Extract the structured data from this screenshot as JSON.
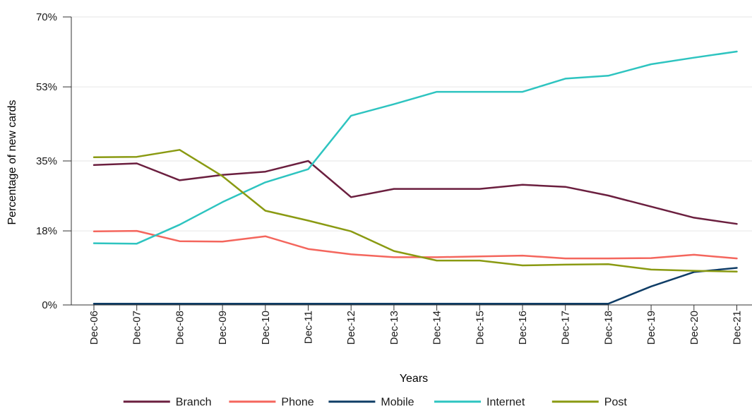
{
  "chart_data": {
    "type": "line",
    "title": "",
    "xlabel": "Years",
    "ylabel": "Percentage of new cards",
    "ylim": [
      0,
      70
    ],
    "yticks": [
      0,
      18,
      35,
      53,
      70
    ],
    "ytick_labels": [
      "0%",
      "18%",
      "35%",
      "53%",
      "70%"
    ],
    "grid": "horizontal",
    "legend_position": "bottom",
    "categories": [
      "Dec-06",
      "Dec-07",
      "Dec-08",
      "Dec-09",
      "Dec-10",
      "Dec-11",
      "Dec-12",
      "Dec-13",
      "Dec-14",
      "Dec-15",
      "Dec-16",
      "Dec-17",
      "Dec-18",
      "Dec-19",
      "Dec-20",
      "Dec-21"
    ],
    "series": [
      {
        "name": "Branch",
        "color": "#6b1f3f",
        "values": [
          34.0,
          34.4,
          30.3,
          31.6,
          32.4,
          35.0,
          26.2,
          28.2,
          28.2,
          28.2,
          29.2,
          28.7,
          26.6,
          23.9,
          21.2,
          19.7
        ]
      },
      {
        "name": "Phone",
        "color": "#f4665d",
        "values": [
          17.9,
          18.0,
          15.5,
          15.4,
          16.7,
          13.6,
          12.3,
          11.6,
          11.6,
          11.8,
          12.0,
          11.3,
          11.3,
          11.4,
          12.2,
          11.3
        ]
      },
      {
        "name": "Mobile",
        "color": "#0f3d66",
        "values": [
          0.3,
          0.3,
          0.3,
          0.3,
          0.3,
          0.3,
          0.3,
          0.3,
          0.3,
          0.3,
          0.3,
          0.3,
          0.3,
          4.5,
          8.0,
          9.0
        ]
      },
      {
        "name": "Internet",
        "color": "#2ec4c0",
        "values": [
          15.0,
          14.9,
          19.5,
          25.0,
          29.8,
          33.0,
          46.0,
          48.8,
          51.8,
          51.8,
          51.8,
          55.0,
          55.7,
          58.5,
          60.1,
          61.6
        ]
      },
      {
        "name": "Post",
        "color": "#8a9a12",
        "values": [
          35.9,
          36.0,
          37.7,
          31.3,
          22.9,
          20.5,
          17.9,
          13.1,
          10.8,
          10.8,
          9.6,
          9.8,
          9.9,
          8.6,
          8.3,
          8.1
        ]
      }
    ]
  }
}
